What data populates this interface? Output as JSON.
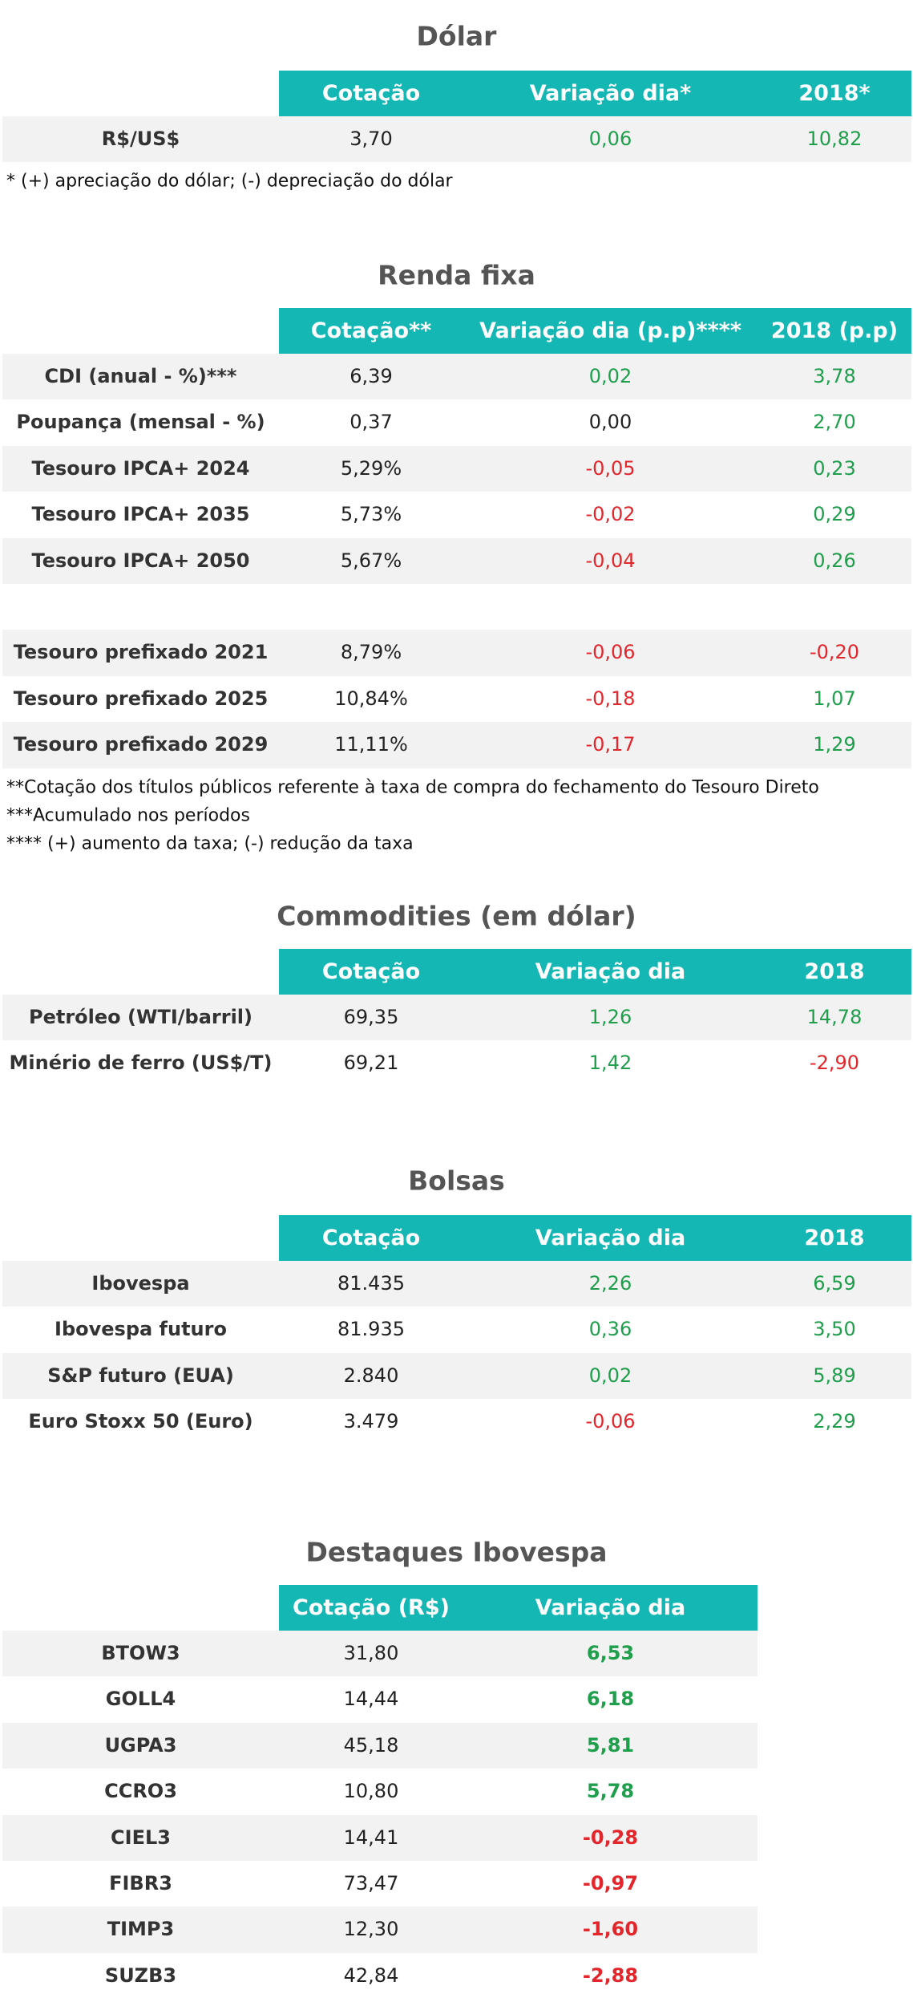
{
  "colors": {
    "header": "#14b7b3",
    "row_shade": "#f2f2f2",
    "positive": "#1f9e4c",
    "negative": "#e3262b",
    "neutral": "#222222"
  },
  "sections": [
    {
      "title": "Dólar",
      "headers": [
        "Cotação",
        "Variação dia*",
        "2018*"
      ],
      "groups": [
        [
          [
            "R$/US$",
            "3,70",
            "0,06",
            "10,82"
          ]
        ]
      ],
      "notes": [
        "* (+) apreciação do dólar; (-) depreciação do dólar"
      ]
    },
    {
      "title": "Renda fixa",
      "headers": [
        "Cotação**",
        "Variação dia (p.p)****",
        "2018 (p.p)"
      ],
      "groups": [
        [
          [
            "CDI (anual - %)***",
            "6,39",
            "0,02",
            "3,78"
          ],
          [
            "Poupança (mensal - %)",
            "0,37",
            "0,00",
            "2,70"
          ],
          [
            "Tesouro IPCA+ 2024",
            "5,29%",
            "-0,05",
            "0,23"
          ],
          [
            "Tesouro IPCA+ 2035",
            "5,73%",
            "-0,02",
            "0,29"
          ],
          [
            "Tesouro IPCA+ 2050",
            "5,67%",
            "-0,04",
            "0,26"
          ]
        ],
        [
          [
            "Tesouro prefixado 2021",
            "8,79%",
            "-0,06",
            "-0,20"
          ],
          [
            "Tesouro prefixado 2025",
            "10,84%",
            "-0,18",
            "1,07"
          ],
          [
            "Tesouro prefixado 2029",
            "11,11%",
            "-0,17",
            "1,29"
          ]
        ]
      ],
      "notes": [
        "**Cotação dos títulos públicos referente à taxa de compra do fechamento do Tesouro Direto",
        "***Acumulado nos períodos",
        "**** (+) aumento da taxa; (-) redução da taxa"
      ]
    },
    {
      "title": "Commodities (em dólar)",
      "headers": [
        "Cotação",
        "Variação dia",
        "2018"
      ],
      "groups": [
        [
          [
            "Petróleo (WTI/barril)",
            "69,35",
            "1,26",
            "14,78"
          ],
          [
            "Minério de ferro (US$/T)",
            "69,21",
            "1,42",
            "-2,90"
          ]
        ]
      ]
    },
    {
      "title": "Bolsas",
      "headers": [
        "Cotação",
        "Variação dia",
        "2018"
      ],
      "groups": [
        [
          [
            "Ibovespa",
            "81.435",
            "2,26",
            "6,59"
          ],
          [
            "Ibovespa futuro",
            "81.935",
            "0,36",
            "3,50"
          ],
          [
            "S&P futuro (EUA)",
            "2.840",
            "0,02",
            "5,89"
          ],
          [
            "Euro Stoxx 50 (Euro)",
            "3.479",
            "-0,06",
            "2,29"
          ]
        ]
      ]
    },
    {
      "title": "Destaques Ibovespa",
      "headers": [
        "Cotação (R$)",
        "Variação dia"
      ],
      "groups": [
        [
          [
            "BTOW3",
            "31,80",
            "6,53"
          ],
          [
            "GOLL4",
            "14,44",
            "6,18"
          ],
          [
            "UGPA3",
            "45,18",
            "5,81"
          ],
          [
            "CCRO3",
            "10,80",
            "5,78"
          ],
          [
            "CIEL3",
            "14,41",
            "-0,28"
          ],
          [
            "FIBR3",
            "73,47",
            "-0,97"
          ],
          [
            "TIMP3",
            "12,30",
            "-1,60"
          ],
          [
            "SUZB3",
            "42,84",
            "-2,88"
          ]
        ]
      ]
    }
  ]
}
